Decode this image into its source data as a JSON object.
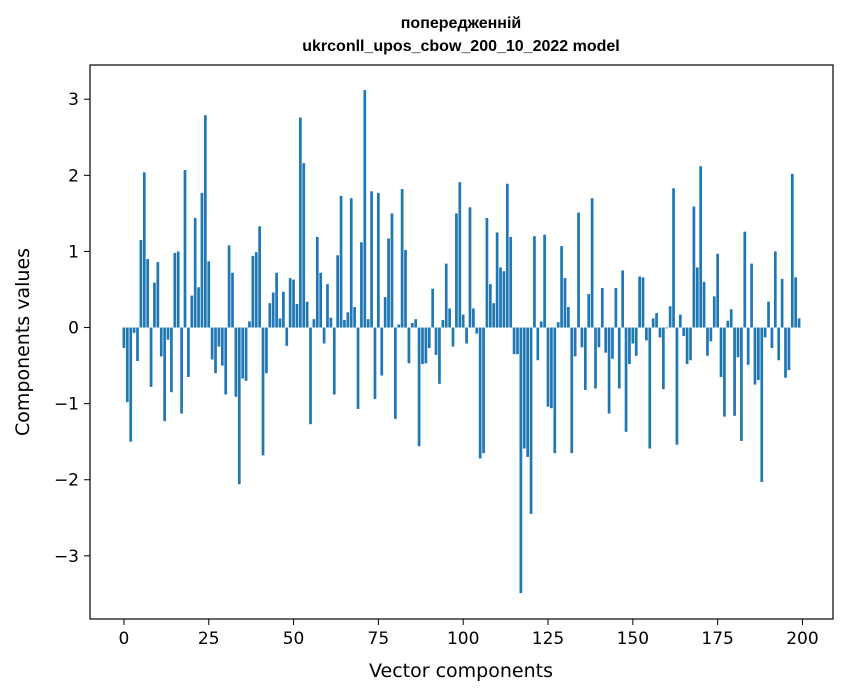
{
  "chart_data": {
    "type": "bar",
    "title_lines": [
      "попередженній",
      "ukrconll_upos_cbow_200_10_2022 model"
    ],
    "xlabel": "Vector components",
    "ylabel": "Components values",
    "xlim": [
      -10,
      209
    ],
    "ylim": [
      -3.83,
      3.45
    ],
    "xticks": [
      0,
      25,
      50,
      75,
      100,
      125,
      150,
      175,
      200
    ],
    "xtick_labels": [
      "0",
      "25",
      "50",
      "75",
      "100",
      "125",
      "150",
      "175",
      "200"
    ],
    "yticks": [
      -3,
      -2,
      -1,
      0,
      1,
      2,
      3
    ],
    "ytick_labels": [
      "−3",
      "−2",
      "−1",
      "0",
      "1",
      "2",
      "3"
    ],
    "grid": false,
    "bar_color": "#1f77b4",
    "x": [
      0,
      1,
      2,
      3,
      4,
      5,
      6,
      7,
      8,
      9,
      10,
      11,
      12,
      13,
      14,
      15,
      16,
      17,
      18,
      19,
      20,
      21,
      22,
      23,
      24,
      25,
      26,
      27,
      28,
      29,
      30,
      31,
      32,
      33,
      34,
      35,
      36,
      37,
      38,
      39,
      40,
      41,
      42,
      43,
      44,
      45,
      46,
      47,
      48,
      49,
      50,
      51,
      52,
      53,
      54,
      55,
      56,
      57,
      58,
      59,
      60,
      61,
      62,
      63,
      64,
      65,
      66,
      67,
      68,
      69,
      70,
      71,
      72,
      73,
      74,
      75,
      76,
      77,
      78,
      79,
      80,
      81,
      82,
      83,
      84,
      85,
      86,
      87,
      88,
      89,
      90,
      91,
      92,
      93,
      94,
      95,
      96,
      97,
      98,
      99,
      100,
      101,
      102,
      103,
      104,
      105,
      106,
      107,
      108,
      109,
      110,
      111,
      112,
      113,
      114,
      115,
      116,
      117,
      118,
      119,
      120,
      121,
      122,
      123,
      124,
      125,
      126,
      127,
      128,
      129,
      130,
      131,
      132,
      133,
      134,
      135,
      136,
      137,
      138,
      139,
      140,
      141,
      142,
      143,
      144,
      145,
      146,
      147,
      148,
      149,
      150,
      151,
      152,
      153,
      154,
      155,
      156,
      157,
      158,
      159,
      160,
      161,
      162,
      163,
      164,
      165,
      166,
      167,
      168,
      169,
      170,
      171,
      172,
      173,
      174,
      175,
      176,
      177,
      178,
      179,
      180,
      181,
      182,
      183,
      184,
      185,
      186,
      187,
      188,
      189,
      190,
      191,
      192,
      193,
      194,
      195,
      196,
      197,
      198,
      199
    ],
    "values": [
      -0.27,
      -0.98,
      -1.5,
      -0.07,
      -0.44,
      1.15,
      2.04,
      0.9,
      -0.78,
      0.59,
      0.86,
      -0.38,
      -1.23,
      -0.16,
      -0.85,
      0.98,
      1.0,
      -1.13,
      2.07,
      -0.65,
      0.42,
      1.44,
      0.53,
      1.77,
      2.79,
      0.87,
      -0.42,
      -0.6,
      -0.25,
      -0.5,
      -0.88,
      1.08,
      0.72,
      -0.91,
      -2.06,
      -0.67,
      -0.7,
      0.08,
      0.94,
      0.99,
      1.33,
      -1.68,
      -0.6,
      0.32,
      0.46,
      0.72,
      0.12,
      0.47,
      -0.24,
      0.65,
      0.63,
      0.31,
      2.76,
      2.16,
      0.34,
      -1.27,
      0.11,
      1.19,
      0.72,
      -0.21,
      0.57,
      0.13,
      -0.88,
      0.95,
      1.73,
      0.1,
      0.2,
      1.7,
      0.27,
      -1.07,
      1.12,
      3.12,
      0.11,
      1.79,
      -0.94,
      1.77,
      -0.63,
      0.4,
      1.17,
      1.5,
      -1.2,
      0.04,
      1.82,
      1.02,
      -0.47,
      0.06,
      0.11,
      -1.56,
      -0.48,
      -0.47,
      -0.27,
      0.51,
      -0.36,
      -0.74,
      0.1,
      0.84,
      0.25,
      -0.25,
      1.5,
      1.91,
      0.17,
      -0.21,
      1.58,
      0.25,
      -0.08,
      -1.72,
      -1.65,
      1.44,
      0.57,
      0.32,
      1.25,
      0.79,
      0.74,
      1.89,
      1.19,
      -0.35,
      -0.35,
      -3.49,
      -1.59,
      -1.7,
      -2.45,
      1.2,
      -0.43,
      0.08,
      1.22,
      -1.04,
      -1.06,
      -1.65,
      0.07,
      1.07,
      0.65,
      0.27,
      -1.65,
      -0.38,
      1.51,
      -0.26,
      -0.82,
      0.44,
      1.7,
      -0.8,
      -0.26,
      0.52,
      -0.33,
      -1.13,
      -0.41,
      0.52,
      -0.8,
      0.75,
      -1.37,
      -0.48,
      -0.21,
      -0.37,
      0.67,
      0.66,
      -0.17,
      -1.59,
      0.12,
      0.19,
      -0.13,
      -0.81,
      -0.01,
      0.28,
      1.83,
      -1.54,
      0.17,
      -0.11,
      -0.48,
      -0.43,
      1.59,
      0.79,
      2.12,
      0.6,
      -0.37,
      -0.18,
      0.41,
      0.97,
      -0.65,
      -1.17,
      0.09,
      0.24,
      -1.16,
      -0.39,
      -1.49,
      1.26,
      -0.49,
      0.84,
      -0.75,
      -0.69,
      -2.03,
      -0.13,
      0.34,
      -0.27,
      1.0,
      -0.43,
      0.64,
      -0.66,
      -0.56,
      2.02,
      0.66,
      0.12
    ]
  }
}
